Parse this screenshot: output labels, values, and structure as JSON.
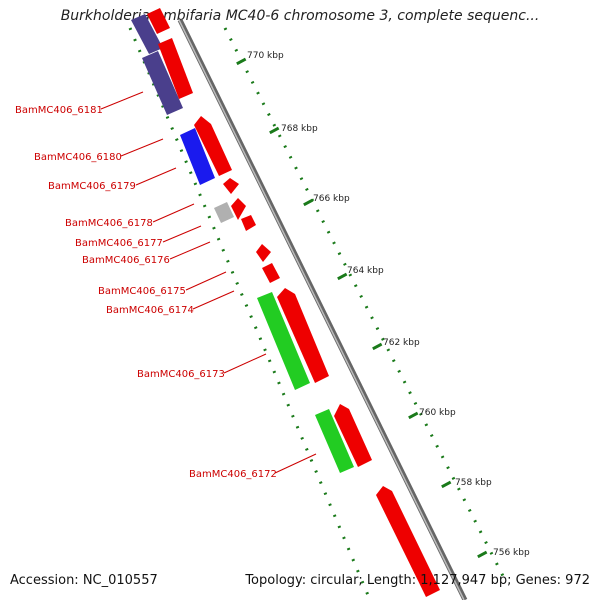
{
  "title": "Burkholderia ambifaria MC40-6 chromosome 3, complete sequenc...",
  "footer": {
    "accession": "Accession: NC_010557",
    "topology": "Topology: circular; Length: 1,127,947 bp; Genes: 972"
  },
  "ticks": [
    {
      "label": "770 kbp"
    },
    {
      "label": "768 kbp"
    },
    {
      "label": "766 kbp"
    },
    {
      "label": "764 kbp"
    },
    {
      "label": "762 kbp"
    },
    {
      "label": "760 kbp"
    },
    {
      "label": "758 kbp"
    },
    {
      "label": "756 kbp"
    }
  ],
  "gene_labels": [
    {
      "label": "BamMC406_6181"
    },
    {
      "label": "BamMC406_6180"
    },
    {
      "label": "BamMC406_6179"
    },
    {
      "label": "BamMC406_6178"
    },
    {
      "label": "BamMC406_6177"
    },
    {
      "label": "BamMC406_6176"
    },
    {
      "label": "BamMC406_6175"
    },
    {
      "label": "BamMC406_6174"
    },
    {
      "label": "BamMC406_6173"
    },
    {
      "label": "BamMC406_6172"
    }
  ],
  "colors": {
    "gene_label": "#cc0000",
    "forward_gene": "#ee0000",
    "cog_purple": "#4a3f8c",
    "cog_blue": "#1a1aee",
    "cog_green": "#22cc22",
    "cog_gray": "#b0b0b0",
    "tick": "#1a7a1a",
    "backbone": "#888888"
  }
}
